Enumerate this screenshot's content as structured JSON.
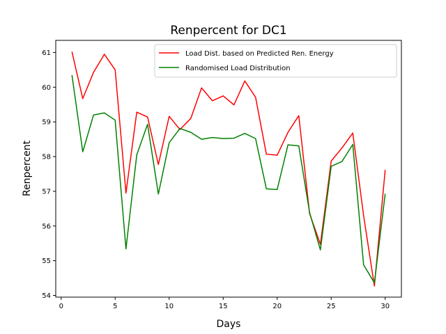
{
  "chart_data": {
    "type": "line",
    "title": "Renpercent for DC1",
    "xlabel": "Days",
    "ylabel": "Renpercent",
    "xlim": [
      -0.5,
      31.5
    ],
    "ylim": [
      53.95,
      61.35
    ],
    "xticks": [
      0,
      5,
      10,
      15,
      20,
      25,
      30
    ],
    "yticks": [
      54,
      55,
      56,
      57,
      58,
      59,
      60,
      61
    ],
    "grid": false,
    "legend": "top-right",
    "x": [
      1,
      2,
      3,
      4,
      5,
      6,
      7,
      8,
      9,
      10,
      11,
      12,
      13,
      14,
      15,
      16,
      17,
      18,
      19,
      20,
      21,
      22,
      23,
      24,
      25,
      26,
      27,
      28,
      29,
      30
    ],
    "series": [
      {
        "name": "Load Dist. based on Predicted Ren. Energy",
        "color": "#ff0000",
        "values": [
          61.02,
          59.67,
          60.43,
          60.95,
          60.5,
          56.95,
          59.28,
          59.14,
          57.77,
          59.16,
          58.78,
          59.1,
          59.98,
          59.61,
          59.75,
          59.49,
          60.18,
          59.71,
          58.07,
          58.04,
          58.7,
          59.18,
          56.36,
          55.47,
          57.87,
          58.25,
          58.68,
          56.3,
          54.27,
          57.62
        ]
      },
      {
        "name": "Randomised Load Distribution",
        "color": "#008000",
        "values": [
          60.35,
          58.14,
          59.2,
          59.26,
          59.05,
          55.34,
          58.05,
          58.93,
          56.92,
          58.4,
          58.81,
          58.7,
          58.5,
          58.55,
          58.52,
          58.53,
          58.67,
          58.52,
          57.07,
          57.05,
          58.34,
          58.31,
          56.39,
          55.31,
          57.72,
          57.86,
          58.35,
          54.88,
          54.36,
          56.93
        ]
      }
    ]
  }
}
